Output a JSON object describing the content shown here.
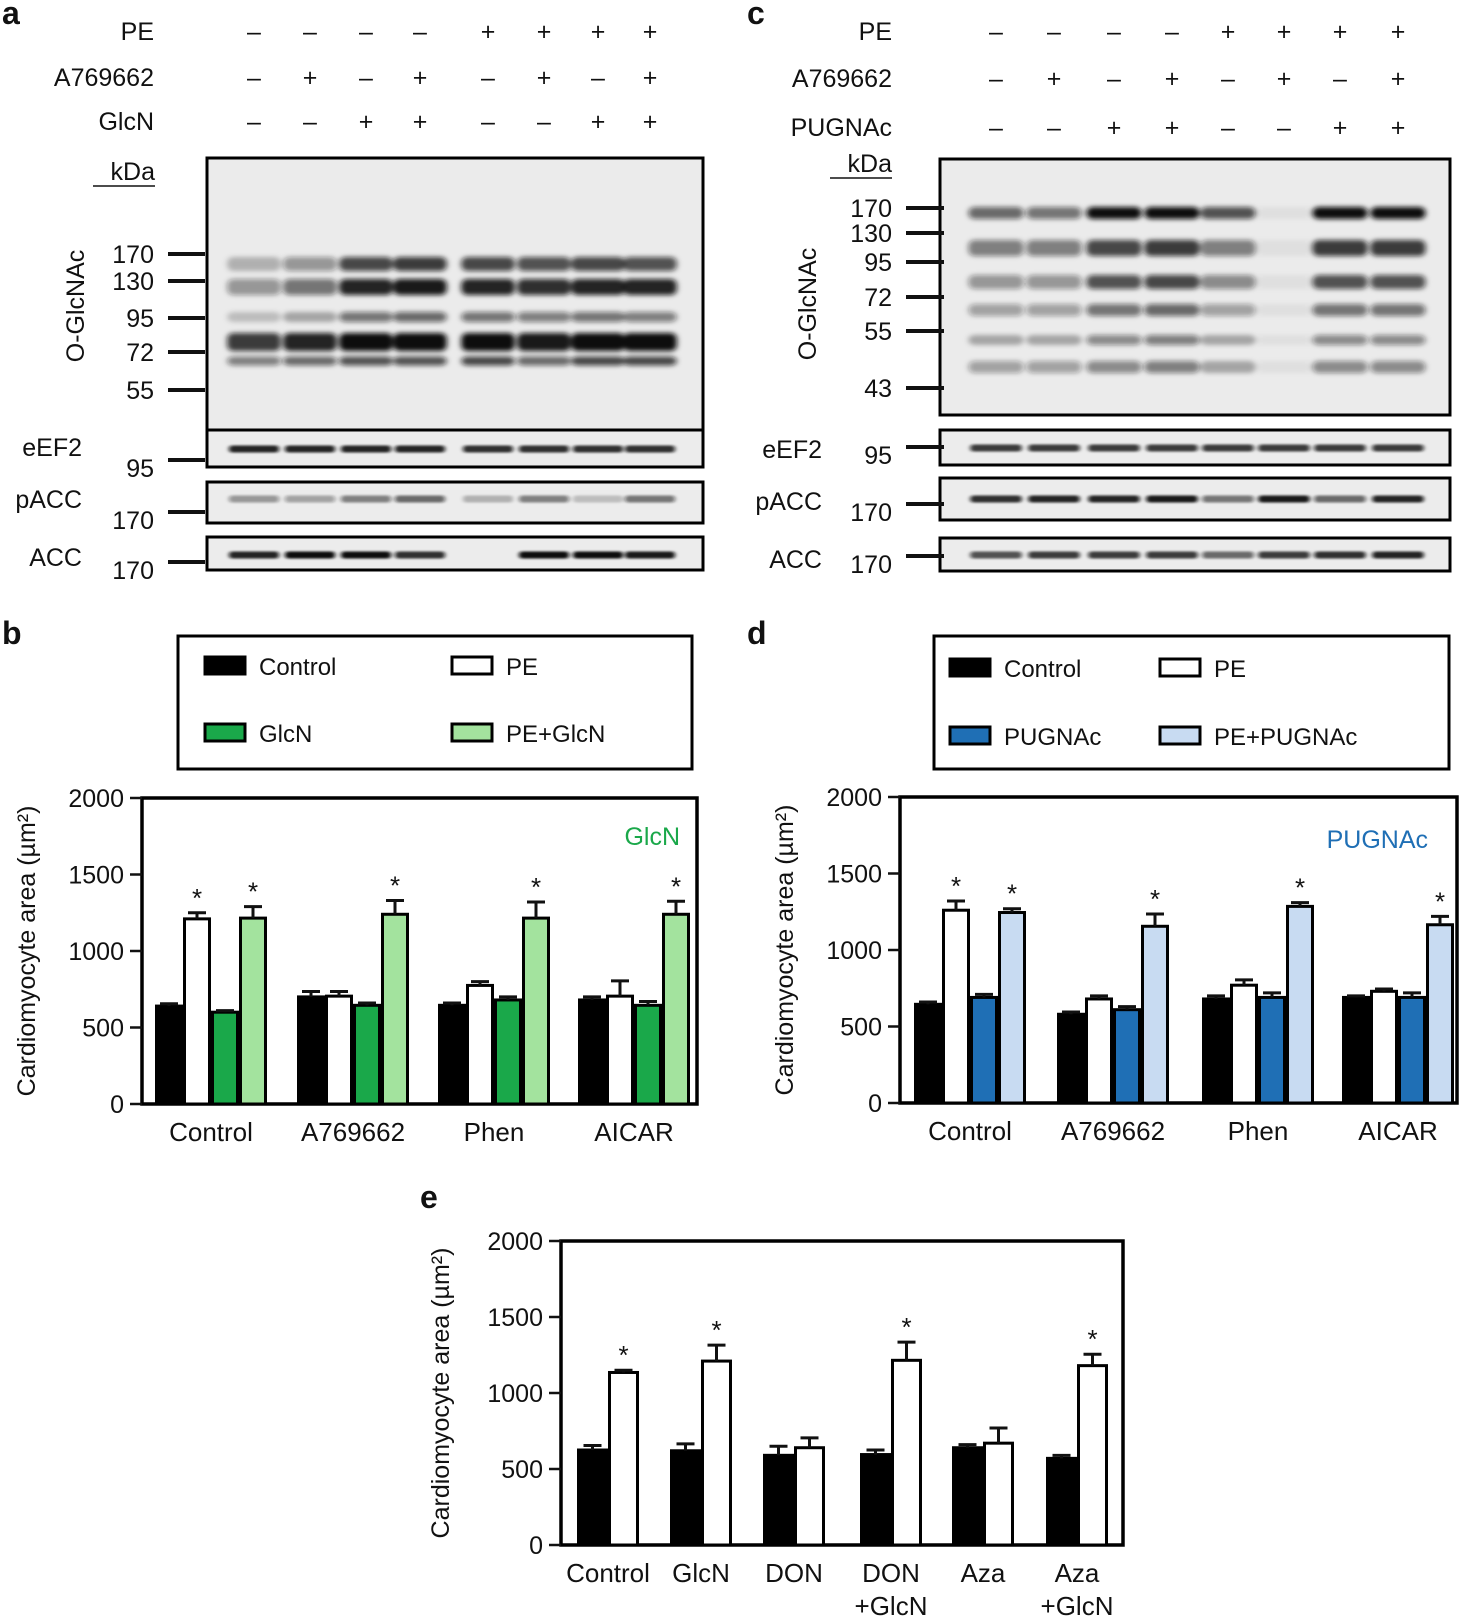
{
  "panels": {
    "a": {
      "letter": "a",
      "rows": [
        {
          "label": "PE",
          "signs": [
            "–",
            "–",
            "–",
            "–",
            "+",
            "+",
            "+",
            "+"
          ]
        },
        {
          "label": "A769662",
          "signs": [
            "–",
            "+",
            "–",
            "+",
            "–",
            "+",
            "–",
            "+"
          ]
        },
        {
          "label": "GlcN",
          "signs": [
            "–",
            "–",
            "+",
            "+",
            "–",
            "–",
            "+",
            "+"
          ]
        }
      ],
      "kda_label": "kDa",
      "main_blot_label": "O-GlcNAc",
      "main_markers": [
        "170",
        "130",
        "95",
        "72",
        "55"
      ],
      "small_blots": [
        {
          "label": "eEF2",
          "marker": "95"
        },
        {
          "label": "pACC",
          "marker": "170"
        },
        {
          "label": "ACC",
          "marker": "170"
        }
      ]
    },
    "c": {
      "letter": "c",
      "rows": [
        {
          "label": "PE",
          "signs": [
            "–",
            "–",
            "–",
            "–",
            "+",
            "+",
            "+",
            "+"
          ]
        },
        {
          "label": "A769662",
          "signs": [
            "–",
            "+",
            "–",
            "+",
            "–",
            "+",
            "–",
            "+"
          ]
        },
        {
          "label": "PUGNAc",
          "signs": [
            "–",
            "–",
            "+",
            "+",
            "–",
            "–",
            "+",
            "+"
          ]
        }
      ],
      "kda_label": "kDa",
      "main_blot_label": "O-GlcNAc",
      "main_markers": [
        "170",
        "130",
        "95",
        "72",
        "55",
        "43"
      ],
      "small_blots": [
        {
          "label": "eEF2",
          "marker": "95"
        },
        {
          "label": "pACC",
          "marker": "170"
        },
        {
          "label": "ACC",
          "marker": "170"
        }
      ]
    }
  },
  "colors": {
    "control": "#000000",
    "pe": "#ffffff",
    "glcn": "#1aa84a",
    "pe_glcn": "#a3e39e",
    "pugnac": "#1f6fb5",
    "pe_pugnac": "#c8dbf2",
    "glcn_text": "#1aa84a",
    "pugnac_text": "#1f6fb5"
  },
  "chart_data": [
    {
      "id": "b",
      "letter": "b",
      "type": "bar",
      "title": "",
      "annotation": "GlcN",
      "ylabel": "Cardiomyocyte area (µm²)",
      "ylim": [
        0,
        2000
      ],
      "yticks": [
        0,
        500,
        1000,
        1500,
        2000
      ],
      "categories": [
        "Control",
        "A769662",
        "Phen",
        "AICAR"
      ],
      "legend": [
        "Control",
        "PE",
        "GlcN",
        "PE+GlcN"
      ],
      "series": [
        {
          "name": "Control",
          "values": [
            640,
            700,
            645,
            680
          ],
          "errors": [
            15,
            35,
            15,
            20
          ]
        },
        {
          "name": "PE",
          "values": [
            1210,
            705,
            775,
            705
          ],
          "errors": [
            40,
            30,
            25,
            100
          ]
        },
        {
          "name": "GlcN",
          "values": [
            600,
            645,
            680,
            645
          ],
          "errors": [
            10,
            15,
            20,
            25
          ]
        },
        {
          "name": "PE+GlcN",
          "values": [
            1215,
            1240,
            1215,
            1240
          ],
          "errors": [
            75,
            90,
            105,
            85
          ]
        }
      ],
      "significant": [
        [
          false,
          true,
          false,
          true
        ],
        [
          false,
          false,
          false,
          true
        ],
        [
          false,
          false,
          false,
          true
        ],
        [
          false,
          false,
          false,
          true
        ]
      ]
    },
    {
      "id": "d",
      "letter": "d",
      "type": "bar",
      "title": "",
      "annotation": "PUGNAc",
      "ylabel": "Cardiomyocyte area (µm²)",
      "ylim": [
        0,
        2000
      ],
      "yticks": [
        0,
        500,
        1000,
        1500,
        2000
      ],
      "categories": [
        "Control",
        "A769662",
        "Phen",
        "AICAR"
      ],
      "legend": [
        "Control",
        "PE",
        "PUGNAc",
        "PE+PUGNAc"
      ],
      "series": [
        {
          "name": "Control",
          "values": [
            645,
            580,
            680,
            690
          ],
          "errors": [
            15,
            15,
            20,
            10
          ]
        },
        {
          "name": "PE",
          "values": [
            1260,
            680,
            770,
            730
          ],
          "errors": [
            60,
            20,
            35,
            15
          ]
        },
        {
          "name": "PUGNAc",
          "values": [
            690,
            610,
            690,
            690
          ],
          "errors": [
            20,
            20,
            30,
            30
          ]
        },
        {
          "name": "PE+PUGNAc",
          "values": [
            1245,
            1155,
            1285,
            1165
          ],
          "errors": [
            25,
            80,
            25,
            55
          ]
        }
      ],
      "significant": [
        [
          false,
          true,
          false,
          true
        ],
        [
          false,
          false,
          false,
          true
        ],
        [
          false,
          false,
          false,
          true
        ],
        [
          false,
          false,
          false,
          true
        ]
      ]
    },
    {
      "id": "e",
      "letter": "e",
      "type": "bar",
      "title": "",
      "ylabel": "Cardiomyocyte area (µm²)",
      "ylim": [
        0,
        2000
      ],
      "yticks": [
        0,
        500,
        1000,
        1500,
        2000
      ],
      "categories": [
        [
          "Control"
        ],
        [
          "GlcN"
        ],
        [
          "DON"
        ],
        [
          "DON",
          "+GlcN"
        ],
        [
          "Aza"
        ],
        [
          "Aza",
          "+GlcN"
        ]
      ],
      "series": [
        {
          "name": "Control",
          "values": [
            625,
            620,
            590,
            595,
            640,
            570
          ],
          "errors": [
            30,
            45,
            60,
            30,
            20,
            20
          ]
        },
        {
          "name": "PE",
          "values": [
            1135,
            1210,
            640,
            1215,
            670,
            1180
          ],
          "errors": [
            15,
            105,
            65,
            120,
            100,
            75
          ]
        }
      ],
      "significant": [
        [
          false,
          true
        ],
        [
          false,
          true
        ],
        [
          false,
          false
        ],
        [
          false,
          true
        ],
        [
          false,
          false
        ],
        [
          false,
          true
        ]
      ]
    }
  ]
}
